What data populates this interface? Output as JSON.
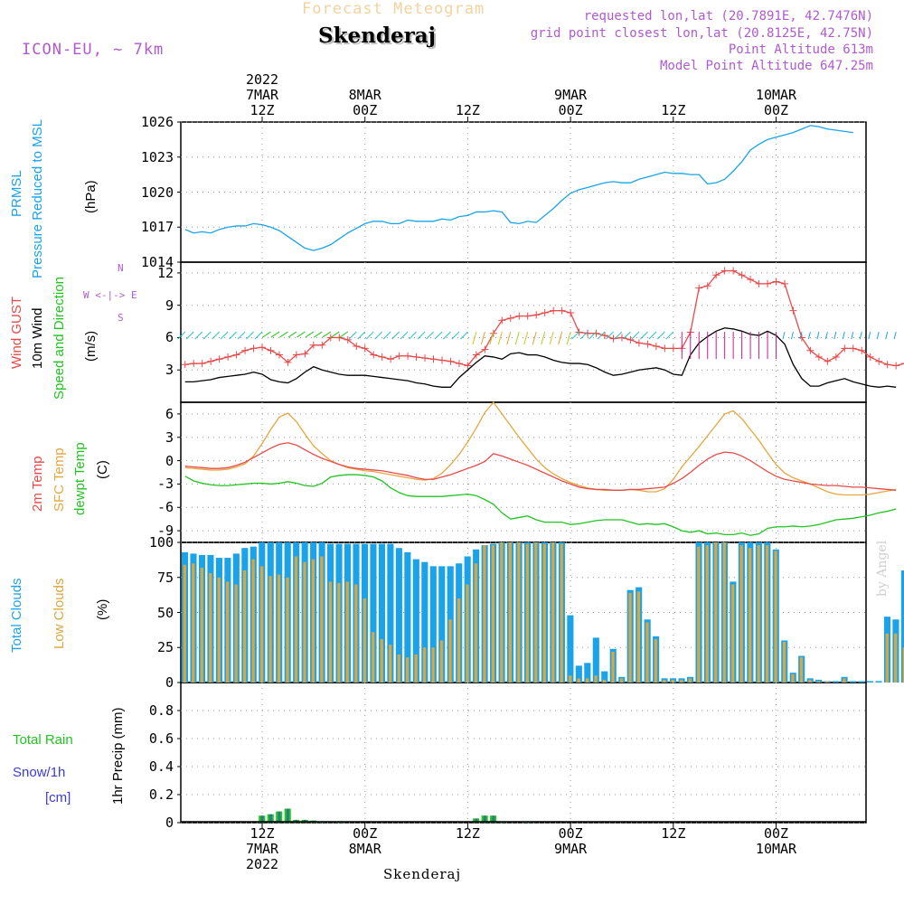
{
  "header": {
    "title": "Forecast Meteogram",
    "location": "Skenderaj",
    "model": "ICON-EU, ~ 7km",
    "requested": "requested lon,lat (20.7891E, 42.7476N)",
    "gridpoint": "grid point closest lon,lat (20.8125E, 42.75N)",
    "point_alt": "Point Altitude 613m",
    "model_alt": "Model Point Altitude 647.25m"
  },
  "footer": {
    "location": "Skenderaj",
    "watermark": "by Angel"
  },
  "time_axis": {
    "top_ticks": [
      {
        "hour": 12,
        "lines": [
          "2022",
          "7MAR",
          "12Z"
        ]
      },
      {
        "hour": 24,
        "lines": [
          "8MAR",
          "00Z"
        ]
      },
      {
        "hour": 36,
        "lines": [
          "12Z"
        ]
      },
      {
        "hour": 48,
        "lines": [
          "9MAR",
          "00Z"
        ]
      },
      {
        "hour": 60,
        "lines": [
          "12Z"
        ]
      },
      {
        "hour": 72,
        "lines": [
          "10MAR",
          "00Z"
        ]
      }
    ],
    "bottom_ticks": [
      {
        "hour": 12,
        "lines": [
          "12Z",
          "7MAR",
          "2022"
        ]
      },
      {
        "hour": 24,
        "lines": [
          "00Z",
          "8MAR"
        ]
      },
      {
        "hour": 36,
        "lines": [
          "12Z"
        ]
      },
      {
        "hour": 48,
        "lines": [
          "00Z",
          "9MAR"
        ]
      },
      {
        "hour": 60,
        "lines": [
          "12Z"
        ]
      },
      {
        "hour": 72,
        "lines": [
          "00Z",
          "10MAR"
        ]
      }
    ]
  },
  "panel_labels": {
    "pressure": [
      "PRMSL",
      "Pressure Reduced to MSL",
      "(hPa)"
    ],
    "wind": [
      "Wind GUST",
      "10m Wind",
      "Speed and Direction",
      "(m/s)"
    ],
    "compass": [
      "N",
      "W <-|-> E",
      "S"
    ],
    "temp": [
      "2m Temp",
      "SFC Temp",
      "dewpt Temp",
      "(C)"
    ],
    "clouds": [
      "Total Clouds",
      "Low Clouds",
      "(%)"
    ],
    "precip": [
      "Total  Rain",
      "Snow/1h",
      "[cm]",
      "1hr Precip (mm)"
    ]
  },
  "colors": {
    "pressure": "#1aa3e8",
    "gust": "#e84a4a",
    "wind": "#000000",
    "t2m": "#e84a4a",
    "tsfc": "#e6a640",
    "dewpt": "#22c422",
    "total_cloud": "#1aa3e8",
    "low_cloud": "#d9a640",
    "rain": "#22c422",
    "snow": "#3a3ae0",
    "label_purple": "#b05ad0"
  },
  "chart_data": [
    {
      "id": "pressure",
      "type": "line",
      "ylim": [
        1014,
        1026
      ],
      "yticks": [
        1014,
        1017,
        1020,
        1023,
        1026
      ],
      "x_start_hour": 0,
      "x_step_hours": 1,
      "series": [
        {
          "values": [
            1016.8,
            1016.5,
            1016.6,
            1016.5,
            1016.8,
            1017.0,
            1017.1,
            1017.1,
            1017.3,
            1017.2,
            1017.0,
            1016.7,
            1016.2,
            1015.7,
            1015.2,
            1015.0,
            1015.2,
            1015.5,
            1016.0,
            1016.5,
            1016.9,
            1017.3,
            1017.5,
            1017.5,
            1017.3,
            1017.3,
            1017.6,
            1017.5,
            1017.5,
            1017.5,
            1017.7,
            1017.6,
            1017.9,
            1018.0,
            1018.3,
            1018.3,
            1018.4,
            1018.3,
            1017.4,
            1017.3,
            1017.5,
            1017.4,
            1018.0,
            1018.6,
            1019.3,
            1019.9,
            1020.2,
            1020.4,
            1020.6,
            1020.8,
            1020.9,
            1020.8,
            1020.8,
            1021.1,
            1021.3,
            1021.5,
            1021.7,
            1021.6,
            1021.6,
            1021.5,
            1021.5,
            1020.7,
            1020.8,
            1021.1,
            1021.8,
            1022.6,
            1023.6,
            1024.1,
            1024.5,
            1024.7,
            1024.9,
            1025.1,
            1025.4,
            1025.7,
            1025.6,
            1025.4,
            1025.3,
            1025.2,
            1025.1
          ]
        }
      ]
    },
    {
      "id": "wind",
      "type": "line",
      "ylim": [
        0,
        13
      ],
      "yticks": [
        3,
        6,
        9,
        12
      ],
      "x_start_hour": 0,
      "x_step_hours": 1,
      "series": [
        {
          "name": "Wind GUST",
          "values": [
            3.5,
            3.6,
            3.6,
            3.8,
            4.0,
            4.2,
            4.4,
            4.8,
            5.0,
            5.1,
            4.8,
            4.4,
            3.7,
            4.4,
            4.5,
            5.3,
            5.3,
            6.0,
            6.0,
            5.8,
            5.2,
            5.0,
            4.4,
            4.2,
            4.0,
            4.3,
            4.3,
            4.2,
            4.1,
            4.0,
            3.9,
            3.8,
            3.6,
            3.4,
            4.4,
            4.9,
            6.4,
            7.6,
            7.8,
            8.0,
            8.0,
            8.1,
            8.3,
            8.5,
            8.5,
            8.3,
            6.5,
            6.4,
            6.4,
            6.2,
            5.9,
            6.0,
            5.8,
            5.5,
            5.4,
            5.2,
            5.0,
            5.0,
            5.0,
            6.5,
            10.6,
            10.8,
            11.8,
            12.2,
            12.2,
            11.8,
            11.4,
            11.0,
            11.0,
            11.2,
            11.0,
            8.5,
            6.0,
            4.8,
            4.2,
            3.8,
            4.2,
            5.0,
            5.0,
            4.8,
            4.2,
            3.8,
            3.5,
            3.4,
            3.6,
            3.6
          ]
        },
        {
          "name": "10m Wind",
          "values": [
            1.9,
            1.9,
            2.0,
            2.1,
            2.3,
            2.4,
            2.5,
            2.6,
            2.8,
            2.6,
            2.1,
            1.9,
            1.8,
            2.2,
            2.8,
            3.3,
            3.0,
            2.8,
            2.6,
            2.5,
            2.5,
            2.5,
            2.4,
            2.3,
            2.2,
            2.1,
            2.0,
            1.8,
            1.7,
            1.5,
            1.4,
            1.4,
            2.3,
            3.0,
            3.7,
            4.3,
            4.2,
            4.0,
            4.5,
            4.6,
            4.4,
            4.4,
            4.2,
            3.9,
            3.7,
            3.6,
            3.6,
            3.5,
            3.2,
            2.8,
            2.5,
            2.6,
            2.8,
            3.0,
            3.1,
            3.2,
            3.0,
            2.6,
            2.5,
            4.4,
            5.5,
            6.1,
            6.6,
            6.9,
            6.8,
            6.6,
            6.3,
            6.2,
            6.6,
            6.2,
            5.4,
            3.5,
            2.2,
            1.5,
            1.5,
            1.8,
            2.0,
            2.2,
            1.9,
            1.7,
            1.5,
            1.4,
            1.5,
            1.4
          ]
        }
      ]
    },
    {
      "id": "temp",
      "type": "line",
      "ylim": [
        -10.5,
        7.5
      ],
      "yticks": [
        -9,
        -6,
        -3,
        0,
        3,
        6
      ],
      "x_start_hour": 0,
      "x_step_hours": 1,
      "series": [
        {
          "name": "2m Temp",
          "values": [
            -0.7,
            -0.8,
            -0.9,
            -1.0,
            -1.0,
            -0.9,
            -0.6,
            -0.2,
            0.4,
            1.0,
            1.6,
            2.1,
            2.3,
            2.0,
            1.4,
            0.8,
            0.3,
            -0.1,
            -0.5,
            -0.8,
            -1.0,
            -1.1,
            -1.2,
            -1.3,
            -1.5,
            -1.7,
            -1.9,
            -2.2,
            -2.4,
            -2.4,
            -2.1,
            -1.8,
            -1.4,
            -1.0,
            -0.6,
            -0.1,
            0.9,
            0.6,
            0.2,
            -0.2,
            -0.6,
            -1.1,
            -1.6,
            -2.1,
            -2.6,
            -3.0,
            -3.4,
            -3.6,
            -3.7,
            -3.7,
            -3.8,
            -3.8,
            -3.7,
            -3.7,
            -3.6,
            -3.5,
            -3.4,
            -2.9,
            -2.3,
            -1.5,
            -0.6,
            0.2,
            0.8,
            1.1,
            1.0,
            0.6,
            0.0,
            -0.7,
            -1.4,
            -2.0,
            -2.4,
            -2.6,
            -2.8,
            -3.0,
            -3.1,
            -3.2,
            -3.2,
            -3.3,
            -3.4,
            -3.4,
            -3.5,
            -3.6,
            -3.7,
            -3.8
          ]
        },
        {
          "name": "SFC Temp",
          "values": [
            -0.9,
            -1.0,
            -1.1,
            -1.2,
            -1.2,
            -1.1,
            -0.8,
            -0.4,
            0.6,
            2.2,
            4.0,
            5.6,
            6.1,
            5.0,
            3.4,
            1.9,
            0.9,
            0.0,
            -0.5,
            -0.9,
            -1.1,
            -1.3,
            -1.4,
            -1.6,
            -1.8,
            -2.0,
            -2.2,
            -2.4,
            -2.5,
            -2.3,
            -1.6,
            -0.5,
            0.8,
            2.4,
            4.2,
            6.2,
            7.5,
            6.0,
            4.5,
            3.0,
            1.6,
            0.2,
            -0.9,
            -1.7,
            -2.3,
            -2.8,
            -3.2,
            -3.5,
            -3.7,
            -3.8,
            -3.8,
            -3.8,
            -3.7,
            -3.8,
            -4.0,
            -4.0,
            -3.6,
            -2.4,
            -0.8,
            0.5,
            1.8,
            3.2,
            4.6,
            6.0,
            6.4,
            5.4,
            4.0,
            2.6,
            1.0,
            -0.5,
            -1.6,
            -2.2,
            -2.6,
            -3.0,
            -3.5,
            -4.0,
            -4.3,
            -4.4,
            -4.4,
            -4.4,
            -4.3,
            -4.1,
            -3.9,
            -3.7
          ]
        },
        {
          "name": "dewpt Temp",
          "values": [
            -2.0,
            -2.6,
            -2.9,
            -3.1,
            -3.2,
            -3.2,
            -3.1,
            -3.0,
            -2.9,
            -2.9,
            -3.0,
            -2.9,
            -2.7,
            -2.9,
            -3.2,
            -3.3,
            -2.9,
            -2.1,
            -1.9,
            -1.8,
            -1.8,
            -1.9,
            -2.1,
            -2.6,
            -3.5,
            -4.1,
            -4.5,
            -4.6,
            -4.6,
            -4.6,
            -4.6,
            -4.5,
            -4.4,
            -4.3,
            -4.5,
            -5.0,
            -5.6,
            -6.7,
            -7.5,
            -7.3,
            -7.1,
            -7.6,
            -7.9,
            -7.9,
            -7.9,
            -8.2,
            -8.1,
            -7.9,
            -7.7,
            -7.6,
            -7.6,
            -7.6,
            -7.9,
            -8.2,
            -8.1,
            -8.2,
            -8.1,
            -8.5,
            -9.0,
            -9.2,
            -9.0,
            -9.4,
            -9.3,
            -9.5,
            -9.5,
            -9.3,
            -9.6,
            -9.4,
            -8.7,
            -8.5,
            -8.5,
            -8.4,
            -8.5,
            -8.4,
            -8.2,
            -7.9,
            -7.6,
            -7.5,
            -7.4,
            -7.2,
            -7.0,
            -6.7,
            -6.5,
            -6.2
          ]
        }
      ]
    },
    {
      "id": "clouds",
      "type": "bar",
      "ylim": [
        0,
        100
      ],
      "yticks": [
        0,
        25,
        50,
        75,
        100
      ],
      "x_start_hour": 0,
      "x_step_hours": 1,
      "series": [
        {
          "name": "Total Clouds",
          "values": [
            93,
            92,
            91,
            91,
            89,
            89,
            92,
            96,
            97,
            100,
            100,
            100,
            100,
            100,
            100,
            100,
            100,
            99,
            99,
            99,
            99,
            99,
            99,
            99,
            99,
            96,
            93,
            88,
            86,
            83,
            83,
            83,
            85,
            90,
            95,
            98,
            99,
            100,
            100,
            100,
            100,
            100,
            100,
            100,
            100,
            48,
            12,
            14,
            32,
            8,
            24,
            4,
            66,
            68,
            45,
            33,
            3,
            3,
            3,
            4,
            100,
            100,
            100,
            100,
            72,
            100,
            100,
            100,
            100,
            95,
            30,
            7,
            19,
            3,
            2,
            1,
            1,
            4,
            1,
            1,
            1,
            1,
            47,
            45,
            80
          ]
        },
        {
          "name": "Low Clouds",
          "values": [
            84,
            85,
            82,
            78,
            75,
            72,
            70,
            80,
            88,
            83,
            76,
            77,
            75,
            90,
            86,
            88,
            90,
            72,
            71,
            72,
            70,
            60,
            36,
            31,
            27,
            20,
            18,
            20,
            25,
            25,
            30,
            45,
            60,
            70,
            85,
            98,
            98,
            100,
            100,
            100,
            99,
            100,
            99,
            100,
            99,
            5,
            3,
            3,
            5,
            2,
            22,
            3,
            64,
            65,
            43,
            31,
            2,
            2,
            2,
            3,
            97,
            98,
            100,
            100,
            70,
            98,
            96,
            98,
            98,
            94,
            29,
            6,
            18,
            2,
            1,
            1,
            0,
            3,
            0,
            0,
            0,
            0,
            35,
            35,
            25
          ]
        }
      ]
    },
    {
      "id": "precip",
      "type": "bar",
      "ylim": [
        0,
        1.0
      ],
      "yticks": [
        0,
        0.2,
        0.4,
        0.6,
        0.8
      ],
      "x_start_hour": 0,
      "x_step_hours": 1,
      "series": [
        {
          "name": "Total Rain",
          "values": [
            0,
            0,
            0,
            0,
            0,
            0,
            0,
            0,
            0,
            0.05,
            0.06,
            0.08,
            0.1,
            0.02,
            0.02,
            0.015,
            0.01,
            0,
            0.01,
            0,
            0,
            0,
            0,
            0,
            0,
            0,
            0,
            0,
            0,
            0,
            0,
            0,
            0,
            0,
            0.03,
            0.05,
            0.05,
            0.01,
            0,
            0,
            0.005,
            0,
            0,
            0,
            0,
            0,
            0,
            0,
            0,
            0,
            0,
            0,
            0,
            0,
            0,
            0,
            0,
            0,
            0,
            0,
            0,
            0,
            0,
            0,
            0,
            0,
            0,
            0,
            0,
            0,
            0,
            0,
            0,
            0,
            0,
            0,
            0,
            0,
            0,
            0,
            0,
            0,
            0,
            0,
            0
          ]
        }
      ]
    }
  ]
}
